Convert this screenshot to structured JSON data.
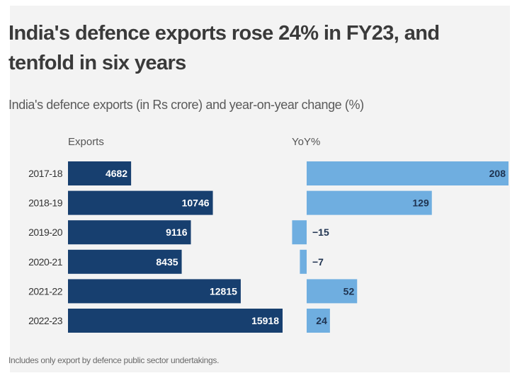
{
  "title": "India's defence exports rose 24% in FY23, and tenfold in six years",
  "subtitle": "India's defence exports (in Rs crore) and year-on-year change (%)",
  "footnote": "Includes only export by defence public sector undertakings.",
  "colors": {
    "exports": "#173f6f",
    "yoy": "#6faee0",
    "background": "#f3f3f3"
  },
  "chart_data": [
    {
      "type": "bar",
      "orientation": "horizontal",
      "header": "Exports",
      "categories": [
        "2017-18",
        "2018-19",
        "2019-20",
        "2020-21",
        "2021-22",
        "2022-23"
      ],
      "values": [
        4682,
        10746,
        9116,
        8435,
        12815,
        15918
      ],
      "labels": [
        "4682",
        "10746",
        "9116",
        "8435",
        "12815",
        "15918"
      ]
    },
    {
      "type": "bar",
      "orientation": "horizontal",
      "header": "YoY%",
      "categories": [
        "2017-18",
        "2018-19",
        "2019-20",
        "2020-21",
        "2021-22",
        "2022-23"
      ],
      "values": [
        208,
        129,
        -15,
        -7,
        52,
        24
      ],
      "labels": [
        "208",
        "129",
        "−15",
        "−7",
        "52",
        "24"
      ]
    }
  ]
}
